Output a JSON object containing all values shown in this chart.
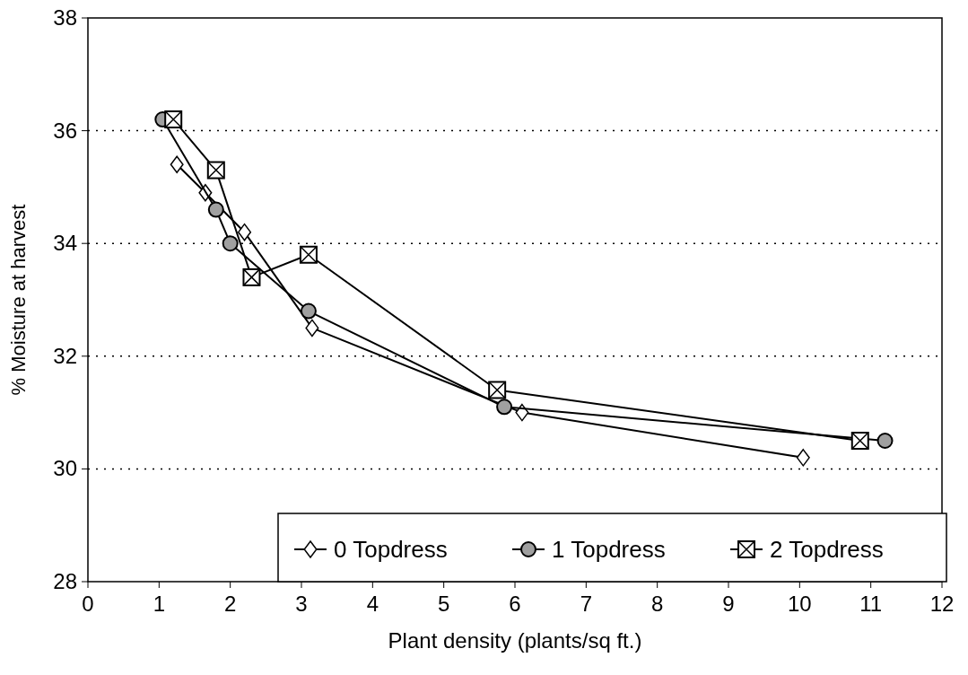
{
  "chart_data": {
    "type": "line",
    "xlabel": "Plant density (plants/sq ft.)",
    "ylabel": "% Moisture at harvest",
    "xlim": [
      0,
      12
    ],
    "xticks": [
      0,
      1,
      2,
      3,
      4,
      5,
      6,
      7,
      8,
      9,
      10,
      11,
      12
    ],
    "ylim": [
      28,
      38
    ],
    "yticks": [
      28,
      30,
      32,
      34,
      36,
      38
    ],
    "grid": "y",
    "legend": "bottom right",
    "series": [
      {
        "name": "0 Topdress",
        "color": "#000000",
        "marker": "diamond",
        "x": [
          1.25,
          1.65,
          2.2,
          3.15,
          6.1,
          10.05
        ],
        "values": [
          35.4,
          34.9,
          34.2,
          32.5,
          31.0,
          30.2
        ]
      },
      {
        "name": "1 Topdress",
        "color": "#000000",
        "marker": "circle",
        "x": [
          1.05,
          1.8,
          2.0,
          3.1,
          5.85,
          11.2
        ],
        "values": [
          36.2,
          34.6,
          34.0,
          32.8,
          31.1,
          30.5
        ]
      },
      {
        "name": "2 Topdress",
        "color": "#000000",
        "marker": "square",
        "x": [
          1.2,
          1.8,
          2.3,
          3.1,
          5.75,
          10.85
        ],
        "values": [
          36.2,
          35.3,
          33.4,
          33.8,
          31.4,
          30.5
        ]
      }
    ]
  }
}
